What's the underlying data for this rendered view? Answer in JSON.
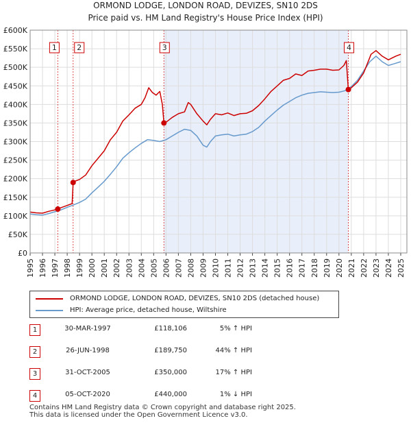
{
  "chart_data": {
    "type": "line",
    "title": "ORMOND LODGE, LONDON ROAD, DEVIZES, SN10 2DS",
    "subtitle": "Price paid vs. HM Land Registry's House Price Index (HPI)",
    "xlabel": "",
    "ylabel": "",
    "xlim": [
      1995,
      2025.5
    ],
    "ylim": [
      0,
      600000
    ],
    "y_ticks": [
      0,
      50000,
      100000,
      150000,
      200000,
      250000,
      300000,
      350000,
      400000,
      450000,
      500000,
      550000,
      600000
    ],
    "y_tick_labels": [
      "£0",
      "£50K",
      "£100K",
      "£150K",
      "£200K",
      "£250K",
      "£300K",
      "£350K",
      "£400K",
      "£450K",
      "£500K",
      "£550K",
      "£600K"
    ],
    "x_ticks": [
      "1995",
      "1996",
      "1997",
      "1998",
      "1999",
      "2000",
      "2001",
      "2002",
      "2003",
      "2004",
      "2005",
      "2006",
      "2007",
      "2008",
      "2009",
      "2010",
      "2011",
      "2012",
      "2013",
      "2014",
      "2015",
      "2016",
      "2017",
      "2018",
      "2019",
      "2020",
      "2021",
      "2022",
      "2023",
      "2024",
      "2025"
    ],
    "grid": true,
    "shaded_region": [
      2005.83,
      2020.76
    ],
    "series": [
      {
        "name": "ORMOND LODGE, LONDON ROAD, DEVIZES, SN10 2DS (detached house)",
        "color": "#cc0000",
        "x": [
          1995.0,
          1995.5,
          1996.0,
          1996.5,
          1997.0,
          1997.24,
          1997.5,
          1998.0,
          1998.4,
          1998.48,
          1998.6,
          1999.0,
          1999.5,
          2000.0,
          2000.5,
          2001.0,
          2001.5,
          2002.0,
          2002.5,
          2003.0,
          2003.5,
          2004.0,
          2004.3,
          2004.6,
          2004.9,
          2005.2,
          2005.5,
          2005.7,
          2005.83,
          2006.0,
          2006.5,
          2007.0,
          2007.5,
          2007.8,
          2008.0,
          2008.5,
          2009.0,
          2009.3,
          2009.6,
          2010.0,
          2010.5,
          2011.0,
          2011.5,
          2012.0,
          2012.5,
          2013.0,
          2013.5,
          2014.0,
          2014.5,
          2015.0,
          2015.5,
          2016.0,
          2016.5,
          2017.0,
          2017.5,
          2018.0,
          2018.5,
          2019.0,
          2019.5,
          2020.0,
          2020.4,
          2020.6,
          2020.76,
          2021.0,
          2021.5,
          2022.0,
          2022.3,
          2022.6,
          2023.0,
          2023.5,
          2024.0,
          2024.3,
          2024.6,
          2025.0
        ],
        "values": [
          110000,
          108000,
          107000,
          112000,
          116000,
          118106,
          122000,
          128000,
          133000,
          189750,
          193000,
          198000,
          210000,
          235000,
          255000,
          275000,
          305000,
          325000,
          355000,
          372000,
          390000,
          400000,
          418000,
          445000,
          432000,
          425000,
          435000,
          400000,
          350000,
          352000,
          365000,
          375000,
          380000,
          405000,
          400000,
          375000,
          355000,
          345000,
          360000,
          375000,
          372000,
          377000,
          370000,
          375000,
          376000,
          383000,
          397000,
          415000,
          435000,
          450000,
          465000,
          470000,
          482000,
          478000,
          490000,
          492000,
          495000,
          495000,
          492000,
          493000,
          505000,
          518000,
          440000,
          445000,
          460000,
          485000,
          510000,
          535000,
          545000,
          530000,
          520000,
          525000,
          530000,
          535000
        ]
      },
      {
        "name": "HPI: Average price, detached house, Wiltshire",
        "color": "#6699cc",
        "x": [
          1995.0,
          1995.5,
          1996.0,
          1996.5,
          1997.0,
          1997.5,
          1998.0,
          1998.5,
          1999.0,
          1999.5,
          2000.0,
          2000.5,
          2001.0,
          2001.5,
          2002.0,
          2002.5,
          2003.0,
          2003.5,
          2004.0,
          2004.5,
          2005.0,
          2005.5,
          2006.0,
          2006.5,
          2007.0,
          2007.5,
          2008.0,
          2008.5,
          2009.0,
          2009.3,
          2009.6,
          2010.0,
          2010.5,
          2011.0,
          2011.5,
          2012.0,
          2012.5,
          2013.0,
          2013.5,
          2014.0,
          2014.5,
          2015.0,
          2015.5,
          2016.0,
          2016.5,
          2017.0,
          2017.5,
          2018.0,
          2018.5,
          2019.0,
          2019.5,
          2020.0,
          2020.5,
          2021.0,
          2021.5,
          2022.0,
          2022.5,
          2023.0,
          2023.5,
          2024.0,
          2024.5,
          2025.0
        ],
        "values": [
          105000,
          103000,
          102000,
          106000,
          111000,
          116000,
          123000,
          129000,
          136000,
          145000,
          162000,
          177000,
          193000,
          212000,
          232000,
          255000,
          270000,
          283000,
          295000,
          305000,
          303000,
          300000,
          305000,
          315000,
          325000,
          333000,
          330000,
          315000,
          290000,
          285000,
          300000,
          315000,
          318000,
          320000,
          315000,
          318000,
          320000,
          327000,
          338000,
          355000,
          370000,
          385000,
          398000,
          408000,
          418000,
          425000,
          430000,
          432000,
          434000,
          433000,
          432000,
          433000,
          437000,
          448000,
          465000,
          490000,
          515000,
          530000,
          515000,
          505000,
          510000,
          515000
        ]
      }
    ],
    "annotations": [
      {
        "label": "1",
        "x": 1997.24,
        "value": 118106
      },
      {
        "label": "2",
        "x": 1998.48,
        "value": 189750
      },
      {
        "label": "3",
        "x": 2005.83,
        "value": 350000
      },
      {
        "label": "4",
        "x": 2020.76,
        "value": 440000
      }
    ]
  },
  "legend": {
    "items": [
      {
        "label": "ORMOND LODGE, LONDON ROAD, DEVIZES, SN10 2DS (detached house)",
        "color": "#cc0000"
      },
      {
        "label": "HPI: Average price, detached house, Wiltshire",
        "color": "#6699cc"
      }
    ]
  },
  "transactions": [
    {
      "num": "1",
      "date": "30-MAR-1997",
      "price": "£118,106",
      "hpi": "5% ↑ HPI"
    },
    {
      "num": "2",
      "date": "26-JUN-1998",
      "price": "£189,750",
      "hpi": "44% ↑ HPI"
    },
    {
      "num": "3",
      "date": "31-OCT-2005",
      "price": "£350,000",
      "hpi": "17% ↑ HPI"
    },
    {
      "num": "4",
      "date": "05-OCT-2020",
      "price": "£440,000",
      "hpi": "1% ↓ HPI"
    }
  ],
  "footer": {
    "line1": "Contains HM Land Registry data © Crown copyright and database right 2025.",
    "line2": "This data is licensed under the Open Government Licence v3.0."
  }
}
